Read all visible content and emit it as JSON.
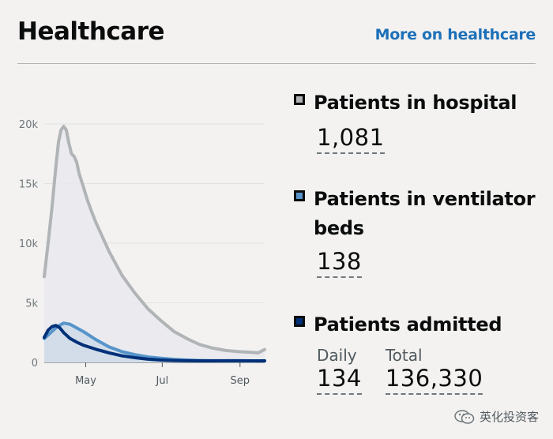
{
  "header": {
    "title": "Healthcare",
    "more_link": "More on healthcare"
  },
  "metrics": {
    "hospital": {
      "label": "Patients in hospital",
      "value": "1,081",
      "color": "#b1b4b6"
    },
    "ventilator": {
      "label_line1": "Patients in ventilator",
      "label_line2": "beds",
      "value": "138",
      "color": "#5694ca"
    },
    "admitted": {
      "label": "Patients admitted",
      "daily_label": "Daily",
      "daily_value": "134",
      "total_label": "Total",
      "total_value": "136,330",
      "color": "#003078"
    }
  },
  "watermark": {
    "text": "英化投资客"
  },
  "chart_data": {
    "type": "line",
    "x_tick_labels": [
      "May",
      "Jul",
      "Sep"
    ],
    "y_tick_labels": [
      "0",
      "5k",
      "10k",
      "15k",
      "20k"
    ],
    "ylim": [
      0,
      20000
    ],
    "grid": true,
    "series": [
      {
        "name": "Patients in hospital",
        "color": "#b1b4b6",
        "area": true,
        "x": [
          0,
          3,
          6,
          9,
          11,
          13,
          15,
          17,
          19,
          21,
          23,
          25,
          27,
          30,
          33,
          36,
          40,
          45,
          50,
          55,
          60,
          70,
          80,
          90,
          100,
          110,
          120,
          130,
          140,
          150,
          160,
          165,
          170
        ],
        "y": [
          7200,
          10000,
          13000,
          16500,
          18500,
          19500,
          19800,
          19500,
          18400,
          17500,
          17300,
          16800,
          15800,
          14800,
          13700,
          12800,
          11700,
          10500,
          9300,
          8300,
          7300,
          5800,
          4500,
          3500,
          2600,
          2000,
          1500,
          1200,
          1000,
          900,
          850,
          800,
          1081
        ]
      },
      {
        "name": "Patients in ventilator beds",
        "color": "#5694ca",
        "area": true,
        "x": [
          0,
          5,
          10,
          15,
          20,
          25,
          30,
          40,
          50,
          60,
          70,
          80,
          90,
          100,
          110,
          120,
          130,
          140,
          150,
          160,
          170
        ],
        "y": [
          2000,
          2500,
          3000,
          3300,
          3200,
          2900,
          2600,
          1900,
          1300,
          900,
          650,
          460,
          350,
          260,
          200,
          160,
          140,
          130,
          130,
          120,
          138
        ]
      },
      {
        "name": "Patients admitted",
        "color": "#003078",
        "area": false,
        "x": [
          0,
          3,
          6,
          9,
          12,
          15,
          20,
          25,
          30,
          40,
          50,
          60,
          70,
          80,
          90,
          100,
          110,
          120,
          130,
          140,
          150,
          160,
          170
        ],
        "y": [
          2100,
          2700,
          3000,
          3100,
          2900,
          2500,
          2000,
          1700,
          1450,
          1100,
          800,
          550,
          400,
          270,
          200,
          160,
          140,
          130,
          130,
          140,
          140,
          130,
          134
        ]
      }
    ]
  }
}
